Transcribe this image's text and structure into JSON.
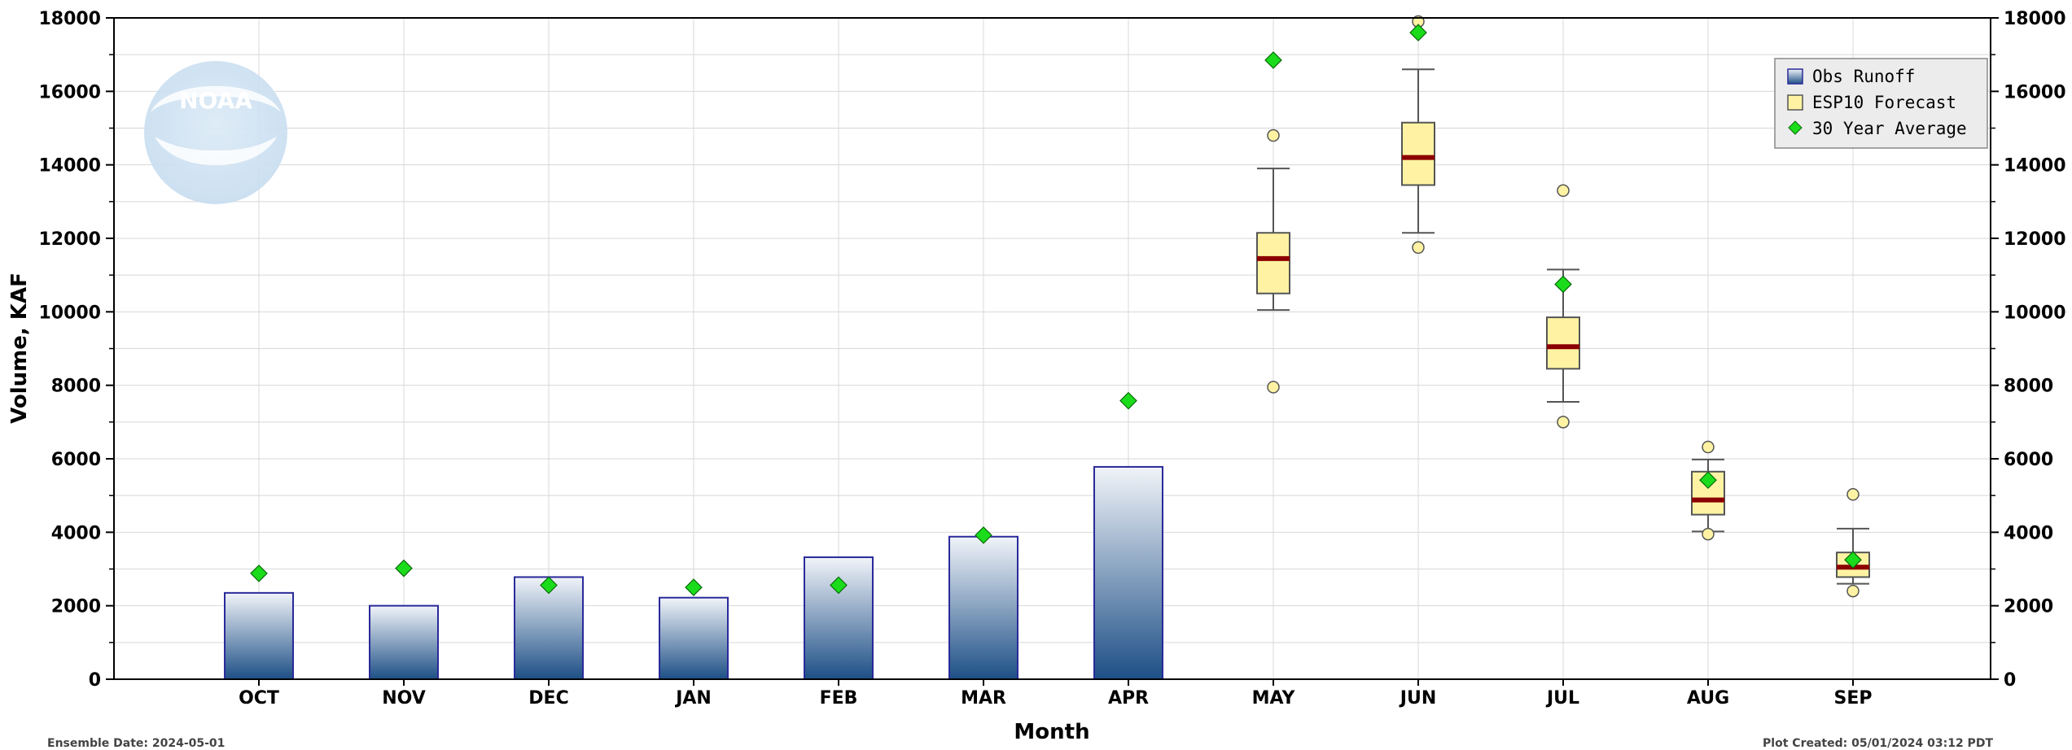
{
  "chart_data": {
    "type": "bar",
    "ylabel": "Volume, KAF",
    "xlabel": "Month",
    "ylim": [
      0,
      18000
    ],
    "y_ticks": [
      "0",
      "2000",
      "4000",
      "6000",
      "8000",
      "10000",
      "12000",
      "14000",
      "16000",
      "18000"
    ],
    "categories": [
      "OCT",
      "NOV",
      "DEC",
      "JAN",
      "FEB",
      "MAR",
      "APR",
      "MAY",
      "JUN",
      "JUL",
      "AUG",
      "SEP"
    ],
    "grid": true,
    "legend_position": "top-right",
    "series": [
      {
        "name": "Obs Runoff",
        "type": "bar",
        "color": "#2b5a8c",
        "values": [
          2350,
          2000,
          2780,
          2220,
          3320,
          3880,
          5780,
          null,
          null,
          null,
          null,
          null
        ]
      },
      {
        "name": "ESP10 Forecast",
        "type": "box",
        "color": "#fff3a3",
        "boxes": [
          {
            "category": "MAY",
            "whisker_low": 10050,
            "q1": 10500,
            "median": 11450,
            "q3": 12150,
            "whisker_high": 13900,
            "outliers": [
              7950,
              14800
            ]
          },
          {
            "category": "JUN",
            "whisker_low": 12150,
            "q1": 13450,
            "median": 14200,
            "q3": 15150,
            "whisker_high": 16600,
            "outliers": [
              11750,
              17900
            ]
          },
          {
            "category": "JUL",
            "whisker_low": 7550,
            "q1": 8450,
            "median": 9050,
            "q3": 9850,
            "whisker_high": 11150,
            "outliers": [
              7000,
              13300
            ]
          },
          {
            "category": "AUG",
            "whisker_low": 4020,
            "q1": 4480,
            "median": 4880,
            "q3": 5650,
            "whisker_high": 5980,
            "outliers": [
              3950,
              6320
            ]
          },
          {
            "category": "SEP",
            "whisker_low": 2600,
            "q1": 2780,
            "median": 3050,
            "q3": 3450,
            "whisker_high": 4100,
            "outliers": [
              2400,
              5030
            ]
          }
        ]
      },
      {
        "name": "30 Year Average",
        "type": "marker",
        "color": "#1bdc1b",
        "values": [
          2880,
          3020,
          2560,
          2500,
          2560,
          3920,
          7580,
          16850,
          17600,
          10750,
          5420,
          3250
        ]
      }
    ]
  },
  "footer": {
    "left": "Ensemble Date: 2024-05-01",
    "right": "Plot Created: 05/01/2024 03:12 PDT"
  },
  "logo": {
    "text": "NOAA"
  },
  "colors": {
    "bar_dark": "#1d4f86",
    "bar_light": "#f1f4f9",
    "bar_edge": "#2a2a9a",
    "box_fill": "#fff3a3",
    "median": "#8b0000",
    "marker": "#1bdc1b",
    "grid": "#d8d8d8"
  }
}
